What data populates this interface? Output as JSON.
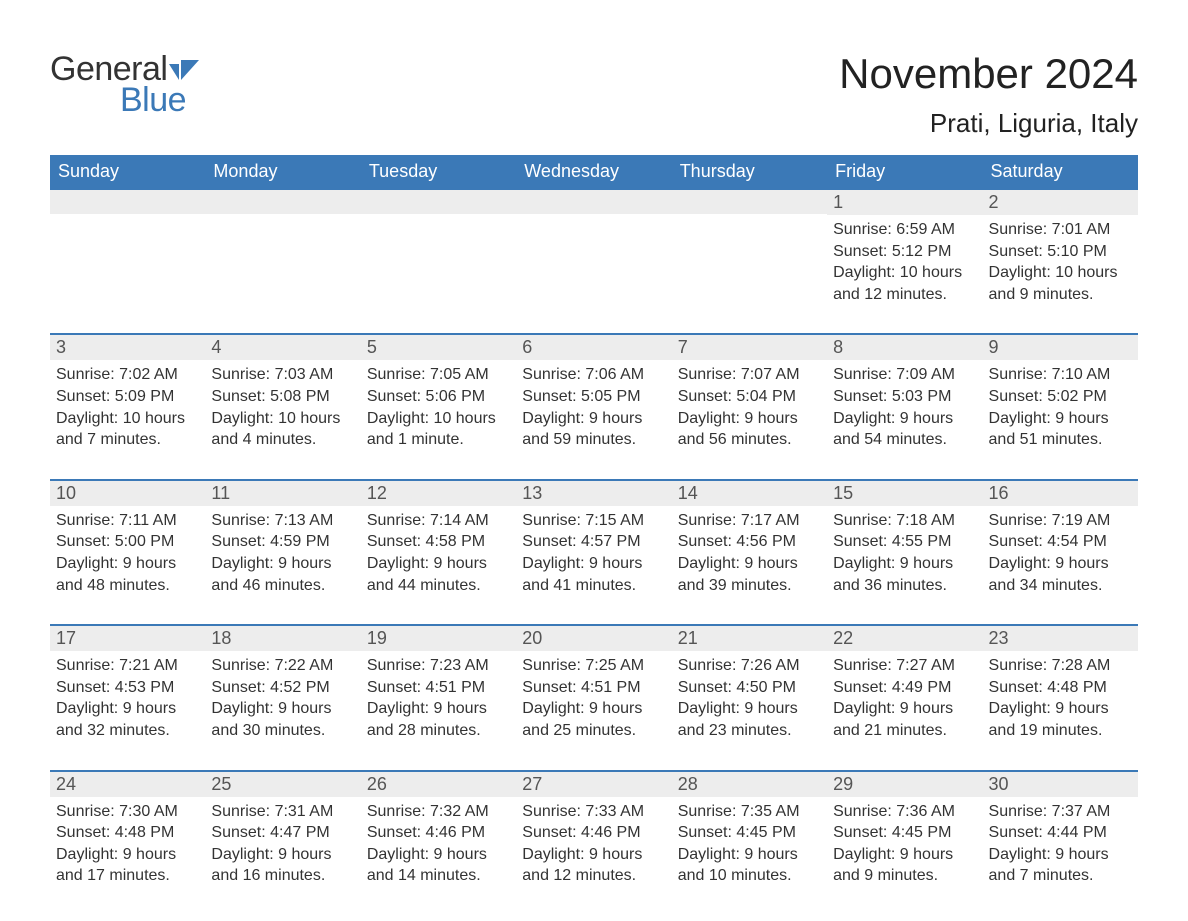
{
  "logo": {
    "word1": "General",
    "word2": "Blue",
    "flag_color": "#3b79b7"
  },
  "title": "November 2024",
  "subtitle": "Prati, Liguria, Italy",
  "colors": {
    "header_bg": "#3b79b7",
    "header_text": "#ffffff",
    "day_header_bg": "#ededed",
    "week_rule": "#3b79b7",
    "body_text": "#333333",
    "day_num_text": "#555555",
    "page_bg": "#ffffff"
  },
  "typography": {
    "title_fontsize_pt": 32,
    "subtitle_fontsize_pt": 20,
    "header_fontsize_pt": 14,
    "daynum_fontsize_pt": 14,
    "body_fontsize_pt": 12,
    "font_family": "Arial"
  },
  "layout": {
    "columns": 7,
    "rows": 5,
    "week_start": "Sunday"
  },
  "day_headers": [
    "Sunday",
    "Monday",
    "Tuesday",
    "Wednesday",
    "Thursday",
    "Friday",
    "Saturday"
  ],
  "weeks": [
    [
      {
        "blank": true
      },
      {
        "blank": true
      },
      {
        "blank": true
      },
      {
        "blank": true
      },
      {
        "blank": true
      },
      {
        "n": "1",
        "sunrise": "Sunrise: 6:59 AM",
        "sunset": "Sunset: 5:12 PM",
        "dl1": "Daylight: 10 hours",
        "dl2": "and 12 minutes."
      },
      {
        "n": "2",
        "sunrise": "Sunrise: 7:01 AM",
        "sunset": "Sunset: 5:10 PM",
        "dl1": "Daylight: 10 hours",
        "dl2": "and 9 minutes."
      }
    ],
    [
      {
        "n": "3",
        "sunrise": "Sunrise: 7:02 AM",
        "sunset": "Sunset: 5:09 PM",
        "dl1": "Daylight: 10 hours",
        "dl2": "and 7 minutes."
      },
      {
        "n": "4",
        "sunrise": "Sunrise: 7:03 AM",
        "sunset": "Sunset: 5:08 PM",
        "dl1": "Daylight: 10 hours",
        "dl2": "and 4 minutes."
      },
      {
        "n": "5",
        "sunrise": "Sunrise: 7:05 AM",
        "sunset": "Sunset: 5:06 PM",
        "dl1": "Daylight: 10 hours",
        "dl2": "and 1 minute."
      },
      {
        "n": "6",
        "sunrise": "Sunrise: 7:06 AM",
        "sunset": "Sunset: 5:05 PM",
        "dl1": "Daylight: 9 hours",
        "dl2": "and 59 minutes."
      },
      {
        "n": "7",
        "sunrise": "Sunrise: 7:07 AM",
        "sunset": "Sunset: 5:04 PM",
        "dl1": "Daylight: 9 hours",
        "dl2": "and 56 minutes."
      },
      {
        "n": "8",
        "sunrise": "Sunrise: 7:09 AM",
        "sunset": "Sunset: 5:03 PM",
        "dl1": "Daylight: 9 hours",
        "dl2": "and 54 minutes."
      },
      {
        "n": "9",
        "sunrise": "Sunrise: 7:10 AM",
        "sunset": "Sunset: 5:02 PM",
        "dl1": "Daylight: 9 hours",
        "dl2": "and 51 minutes."
      }
    ],
    [
      {
        "n": "10",
        "sunrise": "Sunrise: 7:11 AM",
        "sunset": "Sunset: 5:00 PM",
        "dl1": "Daylight: 9 hours",
        "dl2": "and 48 minutes."
      },
      {
        "n": "11",
        "sunrise": "Sunrise: 7:13 AM",
        "sunset": "Sunset: 4:59 PM",
        "dl1": "Daylight: 9 hours",
        "dl2": "and 46 minutes."
      },
      {
        "n": "12",
        "sunrise": "Sunrise: 7:14 AM",
        "sunset": "Sunset: 4:58 PM",
        "dl1": "Daylight: 9 hours",
        "dl2": "and 44 minutes."
      },
      {
        "n": "13",
        "sunrise": "Sunrise: 7:15 AM",
        "sunset": "Sunset: 4:57 PM",
        "dl1": "Daylight: 9 hours",
        "dl2": "and 41 minutes."
      },
      {
        "n": "14",
        "sunrise": "Sunrise: 7:17 AM",
        "sunset": "Sunset: 4:56 PM",
        "dl1": "Daylight: 9 hours",
        "dl2": "and 39 minutes."
      },
      {
        "n": "15",
        "sunrise": "Sunrise: 7:18 AM",
        "sunset": "Sunset: 4:55 PM",
        "dl1": "Daylight: 9 hours",
        "dl2": "and 36 minutes."
      },
      {
        "n": "16",
        "sunrise": "Sunrise: 7:19 AM",
        "sunset": "Sunset: 4:54 PM",
        "dl1": "Daylight: 9 hours",
        "dl2": "and 34 minutes."
      }
    ],
    [
      {
        "n": "17",
        "sunrise": "Sunrise: 7:21 AM",
        "sunset": "Sunset: 4:53 PM",
        "dl1": "Daylight: 9 hours",
        "dl2": "and 32 minutes."
      },
      {
        "n": "18",
        "sunrise": "Sunrise: 7:22 AM",
        "sunset": "Sunset: 4:52 PM",
        "dl1": "Daylight: 9 hours",
        "dl2": "and 30 minutes."
      },
      {
        "n": "19",
        "sunrise": "Sunrise: 7:23 AM",
        "sunset": "Sunset: 4:51 PM",
        "dl1": "Daylight: 9 hours",
        "dl2": "and 28 minutes."
      },
      {
        "n": "20",
        "sunrise": "Sunrise: 7:25 AM",
        "sunset": "Sunset: 4:51 PM",
        "dl1": "Daylight: 9 hours",
        "dl2": "and 25 minutes."
      },
      {
        "n": "21",
        "sunrise": "Sunrise: 7:26 AM",
        "sunset": "Sunset: 4:50 PM",
        "dl1": "Daylight: 9 hours",
        "dl2": "and 23 minutes."
      },
      {
        "n": "22",
        "sunrise": "Sunrise: 7:27 AM",
        "sunset": "Sunset: 4:49 PM",
        "dl1": "Daylight: 9 hours",
        "dl2": "and 21 minutes."
      },
      {
        "n": "23",
        "sunrise": "Sunrise: 7:28 AM",
        "sunset": "Sunset: 4:48 PM",
        "dl1": "Daylight: 9 hours",
        "dl2": "and 19 minutes."
      }
    ],
    [
      {
        "n": "24",
        "sunrise": "Sunrise: 7:30 AM",
        "sunset": "Sunset: 4:48 PM",
        "dl1": "Daylight: 9 hours",
        "dl2": "and 17 minutes."
      },
      {
        "n": "25",
        "sunrise": "Sunrise: 7:31 AM",
        "sunset": "Sunset: 4:47 PM",
        "dl1": "Daylight: 9 hours",
        "dl2": "and 16 minutes."
      },
      {
        "n": "26",
        "sunrise": "Sunrise: 7:32 AM",
        "sunset": "Sunset: 4:46 PM",
        "dl1": "Daylight: 9 hours",
        "dl2": "and 14 minutes."
      },
      {
        "n": "27",
        "sunrise": "Sunrise: 7:33 AM",
        "sunset": "Sunset: 4:46 PM",
        "dl1": "Daylight: 9 hours",
        "dl2": "and 12 minutes."
      },
      {
        "n": "28",
        "sunrise": "Sunrise: 7:35 AM",
        "sunset": "Sunset: 4:45 PM",
        "dl1": "Daylight: 9 hours",
        "dl2": "and 10 minutes."
      },
      {
        "n": "29",
        "sunrise": "Sunrise: 7:36 AM",
        "sunset": "Sunset: 4:45 PM",
        "dl1": "Daylight: 9 hours",
        "dl2": "and 9 minutes."
      },
      {
        "n": "30",
        "sunrise": "Sunrise: 7:37 AM",
        "sunset": "Sunset: 4:44 PM",
        "dl1": "Daylight: 9 hours",
        "dl2": "and 7 minutes."
      }
    ]
  ]
}
